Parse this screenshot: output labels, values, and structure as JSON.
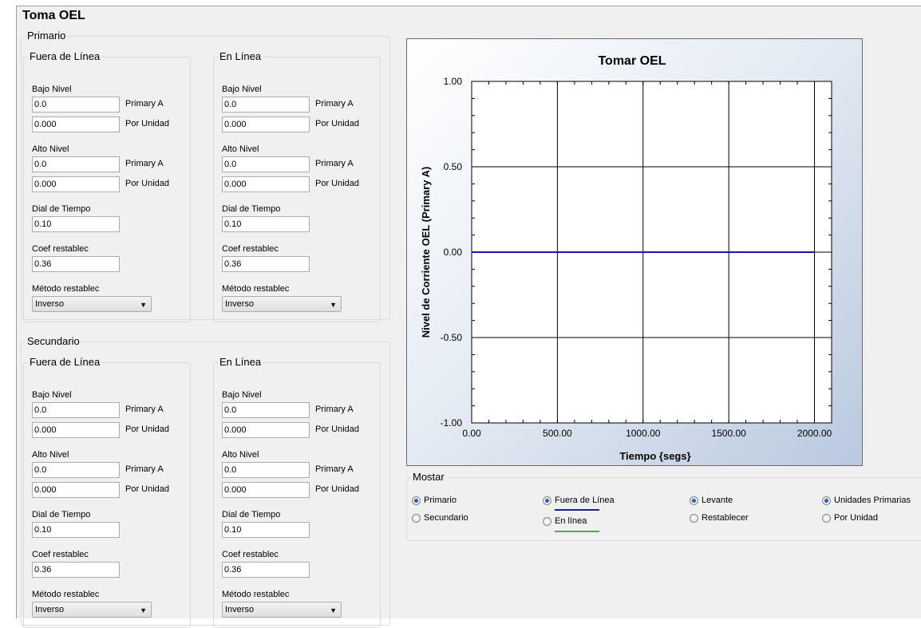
{
  "page": {
    "title": "Toma OEL"
  },
  "groups": [
    {
      "legend": "Primario",
      "columns": [
        {
          "legend": "Fuera de Línea",
          "bajo_label": "Bajo Nivel",
          "bajo_primary": "0.0",
          "bajo_primary_unit": "Primary A",
          "bajo_pu": "0.000",
          "bajo_pu_unit": "Por Unidad",
          "alto_label": "Alto Nivel",
          "alto_primary": "0.0",
          "alto_primary_unit": "Primary A",
          "alto_pu": "0.000",
          "alto_pu_unit": "Por Unidad",
          "dial_label": "Dial de Tiempo",
          "dial_value": "0.10",
          "coef_label": "Coef restablec",
          "coef_value": "0.36",
          "metodo_label": "Método restablec",
          "metodo_value": "Inverso"
        },
        {
          "legend": "En Línea",
          "bajo_label": "Bajo Nivel",
          "bajo_primary": "0.0",
          "bajo_primary_unit": "Primary A",
          "bajo_pu": "0.000",
          "bajo_pu_unit": "Por Unidad",
          "alto_label": "Alto Nivel",
          "alto_primary": "0.0",
          "alto_primary_unit": "Primary A",
          "alto_pu": "0.000",
          "alto_pu_unit": "Por Unidad",
          "dial_label": "Dial de Tiempo",
          "dial_value": "0.10",
          "coef_label": "Coef restablec",
          "coef_value": "0.36",
          "metodo_label": "Método restablec",
          "metodo_value": "Inverso"
        }
      ]
    },
    {
      "legend": "Secundario",
      "columns": [
        {
          "legend": "Fuera de Línea",
          "bajo_label": "Bajo Nivel",
          "bajo_primary": "0.0",
          "bajo_primary_unit": "Primary A",
          "bajo_pu": "0.000",
          "bajo_pu_unit": "Por Unidad",
          "alto_label": "Alto Nivel",
          "alto_primary": "0.0",
          "alto_primary_unit": "Primary A",
          "alto_pu": "0.000",
          "alto_pu_unit": "Por Unidad",
          "dial_label": "Dial de Tiempo",
          "dial_value": "0.10",
          "coef_label": "Coef restablec",
          "coef_value": "0.36",
          "metodo_label": "Método restablec",
          "metodo_value": "Inverso"
        },
        {
          "legend": "En Línea",
          "bajo_label": "Bajo Nivel",
          "bajo_primary": "0.0",
          "bajo_primary_unit": "Primary A",
          "bajo_pu": "0.000",
          "bajo_pu_unit": "Por Unidad",
          "alto_label": "Alto Nivel",
          "alto_primary": "0.0",
          "alto_primary_unit": "Primary A",
          "alto_pu": "0.000",
          "alto_pu_unit": "Por Unidad",
          "dial_label": "Dial de Tiempo",
          "dial_value": "0.10",
          "coef_label": "Coef restablec",
          "coef_value": "0.36",
          "metodo_label": "Método restablec",
          "metodo_value": "Inverso"
        }
      ]
    }
  ],
  "chart_data": {
    "type": "line",
    "title": "Tomar OEL",
    "xlabel": "Tiempo {segs}",
    "ylabel": "Nivel de Corriente OEL (Primary A)",
    "xlim": [
      0,
      2100
    ],
    "ylim": [
      -1,
      1
    ],
    "xticks": [
      0,
      500,
      1000,
      1500,
      2000
    ],
    "xtick_labels": [
      "0.00",
      "500.00",
      "1000.00",
      "1500.00",
      "2000.00"
    ],
    "yticks": [
      1,
      0.5,
      0,
      -0.5,
      -1
    ],
    "ytick_labels": [
      "1.00",
      "0.50",
      "0.00",
      "-0.50",
      "-1.00"
    ],
    "grid": true,
    "series": [
      {
        "color": "#1a1aa0",
        "x": [
          0,
          2000
        ],
        "y": [
          0,
          0
        ]
      }
    ]
  },
  "mostar": {
    "legend": "Mostar",
    "options": [
      {
        "label": "Primario",
        "checked": true
      },
      {
        "label": "Secundario",
        "checked": false
      },
      {
        "label": "Fuera de Línea",
        "checked": true,
        "color": "#1a1aa0"
      },
      {
        "label": "En línea",
        "checked": false,
        "color": "#3cb83c"
      },
      {
        "label": "Levante",
        "checked": true
      },
      {
        "label": "Restablecer",
        "checked": false
      },
      {
        "label": "Unidades Primarias",
        "checked": true
      },
      {
        "label": "Por Unidad",
        "checked": false
      }
    ]
  }
}
